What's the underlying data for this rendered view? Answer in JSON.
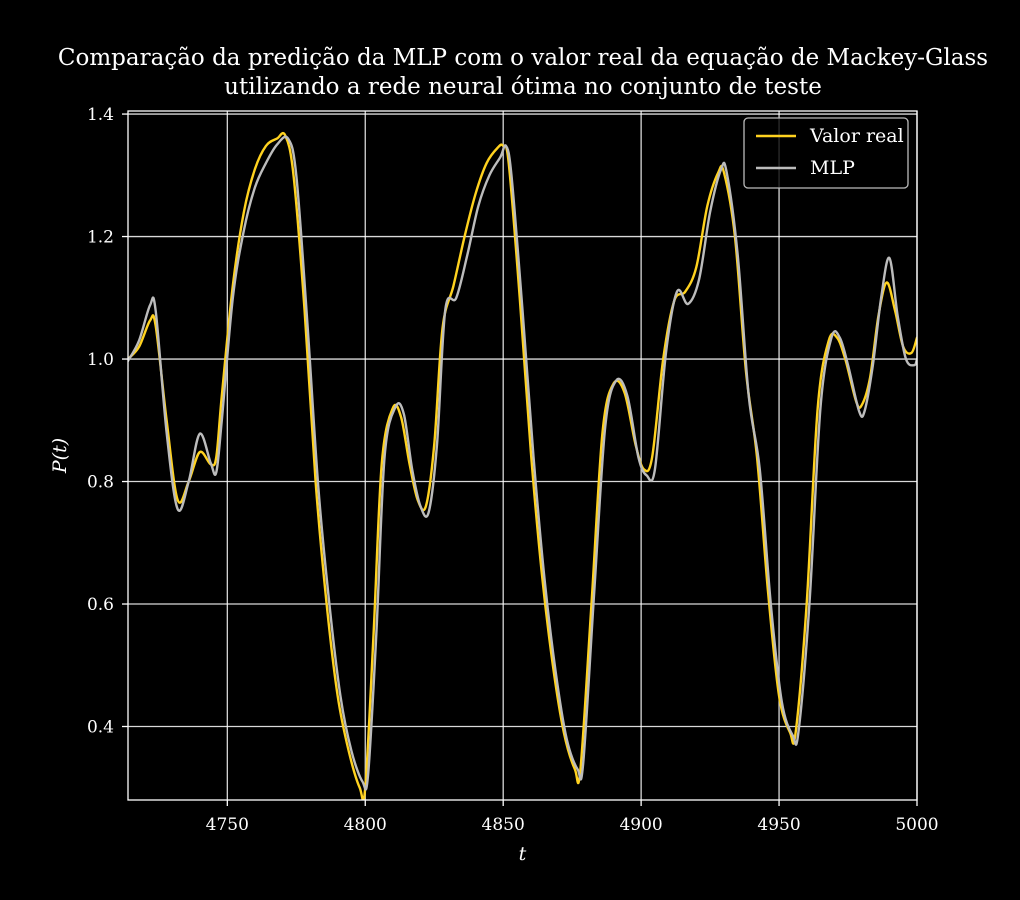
{
  "chart_data": {
    "type": "line",
    "title_line1": "Comparação da predição da MLP com o valor real da equação de Mackey-Glass",
    "title_line2": "utilizando a rede neural ótima no conjunto de teste",
    "xlabel": "t",
    "ylabel": "P(t)",
    "xlim": [
      4714,
      5000
    ],
    "ylim": [
      0.28,
      1.405
    ],
    "xticks": [
      4750,
      4800,
      4850,
      4900,
      4950,
      5000
    ],
    "yticks": [
      0.4,
      0.6,
      0.8,
      1.0,
      1.2,
      1.4
    ],
    "ytick_labels": [
      "0.4",
      "0.6",
      "0.8",
      "1.0",
      "1.2",
      "1.4"
    ],
    "grid": true,
    "legend_position": "top-right",
    "series": [
      {
        "name": "Valor real",
        "color": "#ffd21f",
        "x": [
          4714,
          4718,
          4722,
          4724,
          4728,
          4732,
          4736,
          4740,
          4744,
          4746,
          4748,
          4752,
          4756,
          4760,
          4764,
          4768,
          4771,
          4774,
          4778,
          4782,
          4786,
          4790,
          4794,
          4798,
          4800,
          4803,
          4806,
          4810,
          4813,
          4816,
          4819,
          4822,
          4825,
          4828,
          4832,
          4836,
          4840,
          4844,
          4848,
          4850,
          4852,
          4856,
          4860,
          4864,
          4868,
          4872,
          4876,
          4878,
          4882,
          4886,
          4890,
          4894,
          4898,
          4901,
          4904,
          4908,
          4912,
          4916,
          4920,
          4924,
          4928,
          4930,
          4934,
          4938,
          4942,
          4946,
          4950,
          4954,
          4956,
          4960,
          4964,
          4968,
          4971,
          4974,
          4978,
          4980,
          4983,
          4986,
          4989,
          4992,
          4995,
          4998,
          5000
        ],
        "y": [
          1.0,
          1.02,
          1.063,
          1.055,
          0.9,
          0.77,
          0.8,
          0.848,
          0.828,
          0.84,
          0.94,
          1.12,
          1.24,
          1.31,
          1.348,
          1.36,
          1.365,
          1.3,
          1.08,
          0.8,
          0.6,
          0.45,
          0.36,
          0.3,
          0.3,
          0.55,
          0.83,
          0.92,
          0.905,
          0.83,
          0.77,
          0.76,
          0.86,
          1.05,
          1.12,
          1.2,
          1.27,
          1.32,
          1.345,
          1.348,
          1.32,
          1.1,
          0.85,
          0.65,
          0.5,
          0.39,
          0.33,
          0.33,
          0.6,
          0.88,
          0.96,
          0.945,
          0.86,
          0.82,
          0.84,
          1.0,
          1.095,
          1.11,
          1.15,
          1.25,
          1.305,
          1.305,
          1.2,
          0.98,
          0.84,
          0.62,
          0.45,
          0.39,
          0.39,
          0.6,
          0.92,
          1.03,
          1.035,
          1.0,
          0.93,
          0.925,
          0.97,
          1.07,
          1.125,
          1.08,
          1.02,
          1.01,
          1.035
        ]
      },
      {
        "name": "MLP",
        "color": "#bcbcbc",
        "x": [
          4714,
          4718,
          4722,
          4724,
          4728,
          4732,
          4736,
          4740,
          4744,
          4746,
          4748,
          4752,
          4756,
          4760,
          4764,
          4768,
          4772,
          4775,
          4779,
          4783,
          4787,
          4791,
          4795,
          4799,
          4801,
          4804,
          4807,
          4811,
          4814,
          4817,
          4820,
          4823,
          4826,
          4829,
          4833,
          4837,
          4841,
          4845,
          4849,
          4851,
          4853,
          4857,
          4861,
          4865,
          4869,
          4873,
          4877,
          4879,
          4883,
          4887,
          4891,
          4895,
          4899,
          4902,
          4905,
          4909,
          4913,
          4917,
          4921,
          4925,
          4929,
          4931,
          4935,
          4939,
          4943,
          4947,
          4951,
          4955,
          4957,
          4961,
          4965,
          4969,
          4972,
          4975,
          4979,
          4981,
          4984,
          4987,
          4990,
          4993,
          4996,
          4999,
          5000
        ],
        "y": [
          0.997,
          1.03,
          1.088,
          1.08,
          0.88,
          0.755,
          0.8,
          0.878,
          0.83,
          0.815,
          0.9,
          1.1,
          1.21,
          1.28,
          1.32,
          1.35,
          1.36,
          1.3,
          1.06,
          0.79,
          0.6,
          0.45,
          0.36,
          0.31,
          0.32,
          0.55,
          0.84,
          0.922,
          0.91,
          0.82,
          0.76,
          0.75,
          0.86,
          1.08,
          1.1,
          1.17,
          1.25,
          1.3,
          1.33,
          1.348,
          1.3,
          1.08,
          0.84,
          0.64,
          0.49,
          0.38,
          0.33,
          0.34,
          0.62,
          0.89,
          0.965,
          0.94,
          0.84,
          0.81,
          0.82,
          1.01,
          1.11,
          1.09,
          1.13,
          1.24,
          1.31,
          1.305,
          1.17,
          0.94,
          0.82,
          0.6,
          0.44,
          0.385,
          0.39,
          0.6,
          0.92,
          1.035,
          1.035,
          0.99,
          0.915,
          0.915,
          0.99,
          1.1,
          1.165,
          1.07,
          1.0,
          0.99,
          1.0
        ]
      }
    ]
  }
}
